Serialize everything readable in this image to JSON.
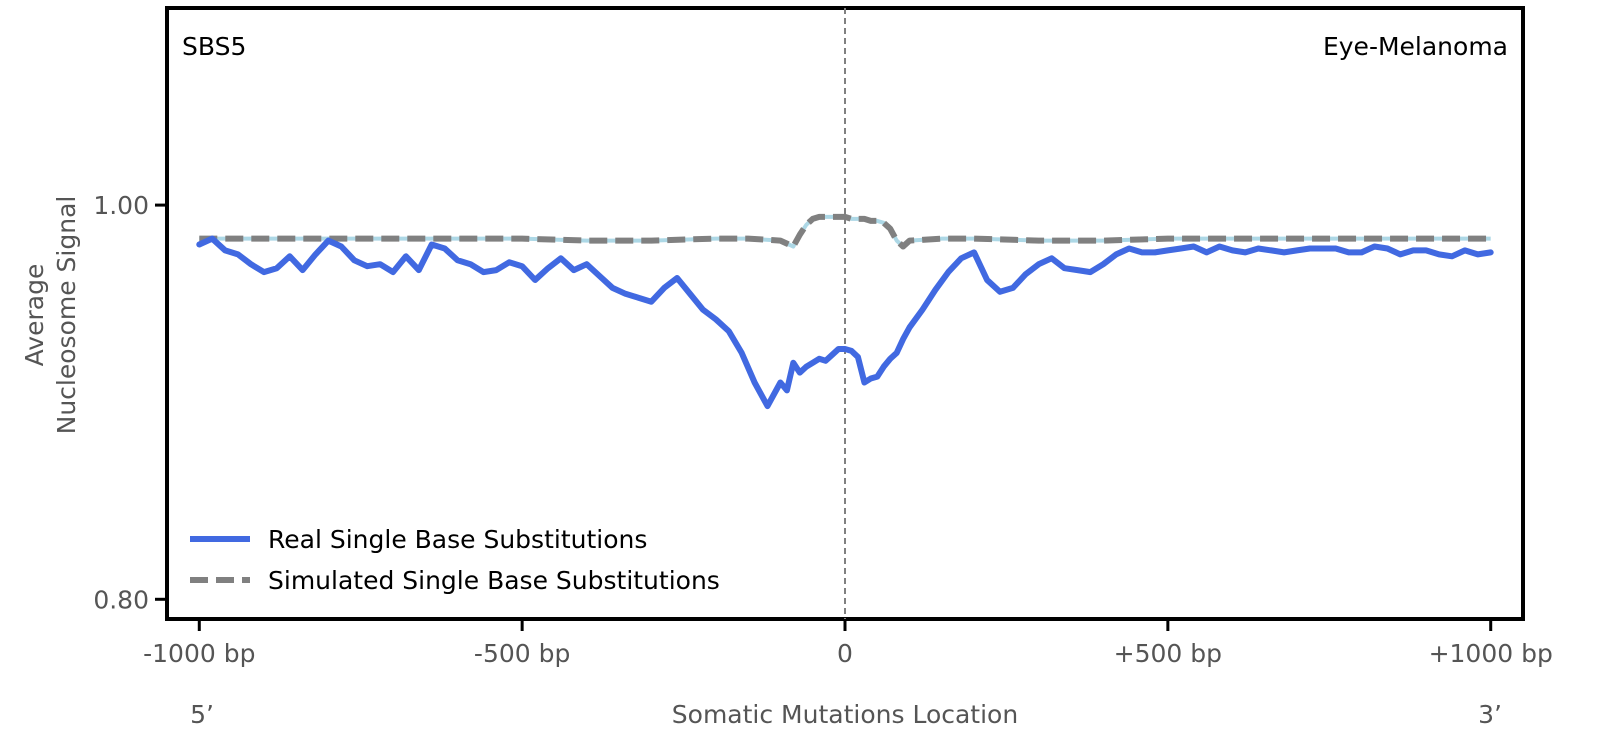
{
  "chart_data": {
    "type": "line",
    "signature_label": "SBS5",
    "tissue_label": "Eye-Melanoma",
    "xlabel": "Somatic Mutations Location",
    "ylabel_line1": "Average",
    "ylabel_line2": "Nucleosome Signal",
    "xlim": [
      -1050,
      1050
    ],
    "ylim": [
      0.79,
      1.1
    ],
    "x_ticks": [
      {
        "value": -1000,
        "label": "-1000 bp"
      },
      {
        "value": -500,
        "label": "-500 bp"
      },
      {
        "value": 0,
        "label": "0"
      },
      {
        "value": 500,
        "label": "+500 bp"
      },
      {
        "value": 1000,
        "label": "+1000 bp"
      }
    ],
    "y_ticks": [
      {
        "value": 0.8,
        "label": "0.80"
      },
      {
        "value": 1.0,
        "label": "1.00"
      }
    ],
    "end_labels": {
      "left": "5’",
      "right": "3’"
    },
    "center_line_x": 0,
    "legend_position": "bottom-left",
    "colors": {
      "real": "#4169E1",
      "simulated": "#808080",
      "simulated_band": "#ADD8E6",
      "center_line": "#808080",
      "frame": "#000000",
      "tick_text": "#555555"
    },
    "series": [
      {
        "name": "Real Single Base Substitutions",
        "style": "solid",
        "x": [
          -1000,
          -980,
          -960,
          -940,
          -920,
          -900,
          -880,
          -860,
          -840,
          -820,
          -800,
          -780,
          -760,
          -740,
          -720,
          -700,
          -680,
          -660,
          -640,
          -620,
          -600,
          -580,
          -560,
          -540,
          -520,
          -500,
          -480,
          -460,
          -440,
          -420,
          -400,
          -380,
          -360,
          -340,
          -320,
          -300,
          -280,
          -260,
          -240,
          -220,
          -200,
          -180,
          -160,
          -140,
          -120,
          -100,
          -90,
          -80,
          -70,
          -60,
          -50,
          -40,
          -30,
          -20,
          -10,
          0,
          10,
          20,
          30,
          40,
          50,
          60,
          70,
          80,
          90,
          100,
          120,
          140,
          160,
          180,
          200,
          220,
          240,
          260,
          280,
          300,
          320,
          340,
          360,
          380,
          400,
          420,
          440,
          460,
          480,
          500,
          520,
          540,
          560,
          580,
          600,
          620,
          640,
          660,
          680,
          700,
          720,
          740,
          760,
          780,
          800,
          820,
          840,
          860,
          880,
          900,
          920,
          940,
          960,
          980,
          1000
        ],
        "y": [
          0.98,
          0.983,
          0.977,
          0.975,
          0.97,
          0.966,
          0.968,
          0.974,
          0.967,
          0.975,
          0.982,
          0.979,
          0.972,
          0.969,
          0.97,
          0.966,
          0.974,
          0.967,
          0.98,
          0.978,
          0.972,
          0.97,
          0.966,
          0.967,
          0.971,
          0.969,
          0.962,
          0.968,
          0.973,
          0.967,
          0.97,
          0.964,
          0.958,
          0.955,
          0.953,
          0.951,
          0.958,
          0.963,
          0.955,
          0.947,
          0.942,
          0.936,
          0.925,
          0.91,
          0.898,
          0.91,
          0.906,
          0.92,
          0.915,
          0.918,
          0.92,
          0.922,
          0.921,
          0.924,
          0.927,
          0.927,
          0.926,
          0.923,
          0.91,
          0.912,
          0.913,
          0.918,
          0.922,
          0.925,
          0.932,
          0.938,
          0.947,
          0.957,
          0.966,
          0.973,
          0.976,
          0.962,
          0.956,
          0.958,
          0.965,
          0.97,
          0.973,
          0.968,
          0.967,
          0.966,
          0.97,
          0.975,
          0.978,
          0.976,
          0.976,
          0.977,
          0.978,
          0.979,
          0.976,
          0.979,
          0.977,
          0.976,
          0.978,
          0.977,
          0.976,
          0.977,
          0.978,
          0.978,
          0.978,
          0.976,
          0.976,
          0.979,
          0.978,
          0.975,
          0.977,
          0.977,
          0.975,
          0.974,
          0.977,
          0.975,
          0.976
        ]
      },
      {
        "name": "Simulated Single Base Substitutions",
        "style": "dashed",
        "x": [
          -1000,
          -900,
          -800,
          -700,
          -600,
          -500,
          -400,
          -300,
          -200,
          -150,
          -100,
          -80,
          -70,
          -60,
          -50,
          -40,
          -30,
          -20,
          -10,
          0,
          10,
          20,
          30,
          40,
          50,
          60,
          70,
          80,
          90,
          100,
          150,
          200,
          300,
          400,
          500,
          600,
          700,
          800,
          900,
          1000
        ],
        "y": [
          0.983,
          0.983,
          0.983,
          0.983,
          0.983,
          0.983,
          0.982,
          0.982,
          0.983,
          0.983,
          0.982,
          0.979,
          0.985,
          0.99,
          0.993,
          0.994,
          0.994,
          0.994,
          0.994,
          0.994,
          0.993,
          0.993,
          0.993,
          0.992,
          0.992,
          0.991,
          0.988,
          0.982,
          0.979,
          0.982,
          0.983,
          0.983,
          0.982,
          0.982,
          0.983,
          0.983,
          0.983,
          0.983,
          0.983,
          0.983
        ]
      }
    ]
  }
}
